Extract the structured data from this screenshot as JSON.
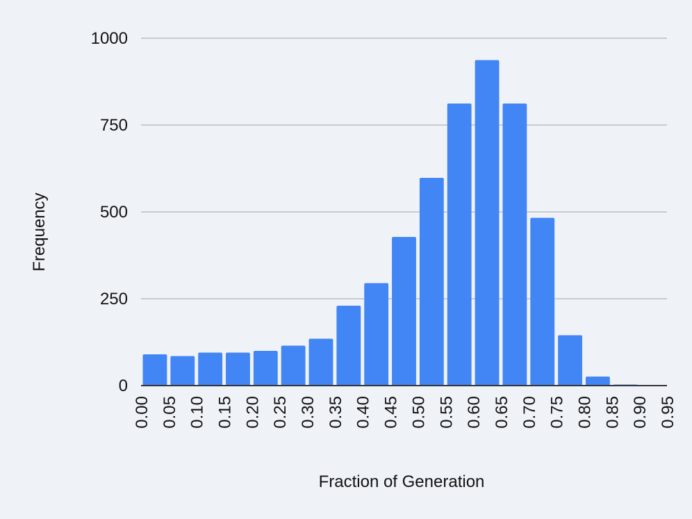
{
  "chart_data": {
    "type": "bar",
    "title": "",
    "xlabel": "Fraction of Generation",
    "ylabel": "Frequency",
    "ylim": [
      0,
      1000
    ],
    "yticks": [
      "0",
      "250",
      "500",
      "750",
      "1000"
    ],
    "categories": [
      "0.00",
      "0.05",
      "0.10",
      "0.15",
      "0.20",
      "0.25",
      "0.30",
      "0.35",
      "0.40",
      "0.45",
      "0.50",
      "0.55",
      "0.60",
      "0.65",
      "0.70",
      "0.75",
      "0.80",
      "0.85",
      "0.90",
      "0.95"
    ],
    "values": [
      90,
      85,
      95,
      95,
      100,
      115,
      135,
      230,
      295,
      428,
      598,
      812,
      937,
      812,
      483,
      145,
      26,
      3,
      0,
      0
    ],
    "grid": true,
    "legend": "none",
    "colors": {
      "bar": "#4285f4",
      "grid": "#c8ccd1",
      "axis": "#333333",
      "background": "#eff3f8"
    }
  }
}
